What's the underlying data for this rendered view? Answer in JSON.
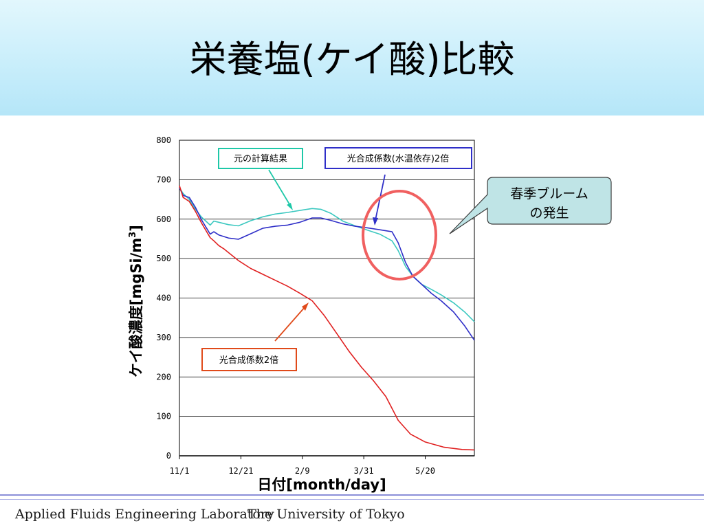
{
  "slide": {
    "title": "栄養塩(ケイ酸)比較",
    "footer_left": "Applied Fluids Engineering Laboratory",
    "footer_right": "The University of Tokyo"
  },
  "chart_data": {
    "type": "line",
    "xlabel": "日付[month/day]",
    "ylabel": "ケイ酸濃度[mgSi/m3]",
    "ylabel_main": "ケイ酸濃度[mgSi/m",
    "ylabel_sup": "3",
    "ylabel_tail": "]",
    "ylim": [
      0,
      800
    ],
    "yticks": [
      0,
      100,
      200,
      300,
      400,
      500,
      600,
      700,
      800
    ],
    "xlim": [
      0,
      240
    ],
    "xticks": [
      {
        "label": "11/1",
        "x": 0
      },
      {
        "label": "12/21",
        "x": 50
      },
      {
        "label": "2/9",
        "x": 100
      },
      {
        "label": "3/31",
        "x": 150
      },
      {
        "label": "5/20",
        "x": 200
      }
    ],
    "grid": true,
    "series": [
      {
        "name": "元の計算結果",
        "color": "#3cc8c0",
        "points": [
          [
            0,
            680
          ],
          [
            3,
            665
          ],
          [
            8,
            650
          ],
          [
            13,
            625
          ],
          [
            18,
            605
          ],
          [
            25,
            585
          ],
          [
            28,
            595
          ],
          [
            32,
            592
          ],
          [
            40,
            586
          ],
          [
            48,
            583
          ],
          [
            58,
            596
          ],
          [
            68,
            606
          ],
          [
            78,
            613
          ],
          [
            88,
            617
          ],
          [
            98,
            622
          ],
          [
            108,
            627
          ],
          [
            115,
            625
          ],
          [
            123,
            615
          ],
          [
            133,
            595
          ],
          [
            143,
            583
          ],
          [
            153,
            572
          ],
          [
            163,
            562
          ],
          [
            173,
            545
          ],
          [
            178,
            520
          ],
          [
            184,
            480
          ],
          [
            190,
            455
          ],
          [
            197,
            435
          ],
          [
            205,
            422
          ],
          [
            213,
            408
          ],
          [
            223,
            388
          ],
          [
            232,
            365
          ],
          [
            240,
            340
          ]
        ]
      },
      {
        "name": "光合成係数(水温依存)2倍",
        "color": "#2f2fc8",
        "points": [
          [
            0,
            680
          ],
          [
            3,
            660
          ],
          [
            8,
            655
          ],
          [
            13,
            630
          ],
          [
            18,
            598
          ],
          [
            25,
            562
          ],
          [
            28,
            568
          ],
          [
            32,
            560
          ],
          [
            40,
            552
          ],
          [
            48,
            549
          ],
          [
            58,
            563
          ],
          [
            68,
            577
          ],
          [
            78,
            582
          ],
          [
            88,
            585
          ],
          [
            98,
            592
          ],
          [
            108,
            603
          ],
          [
            115,
            603
          ],
          [
            123,
            597
          ],
          [
            133,
            588
          ],
          [
            143,
            582
          ],
          [
            153,
            578
          ],
          [
            163,
            573
          ],
          [
            173,
            568
          ],
          [
            178,
            540
          ],
          [
            184,
            490
          ],
          [
            190,
            455
          ],
          [
            197,
            435
          ],
          [
            205,
            412
          ],
          [
            213,
            393
          ],
          [
            223,
            365
          ],
          [
            232,
            330
          ],
          [
            240,
            293
          ]
        ]
      },
      {
        "name": "光合成係数2倍",
        "color": "#e02020",
        "points": [
          [
            0,
            685
          ],
          [
            3,
            655
          ],
          [
            8,
            645
          ],
          [
            13,
            620
          ],
          [
            18,
            590
          ],
          [
            25,
            553
          ],
          [
            28,
            545
          ],
          [
            32,
            533
          ],
          [
            36,
            525
          ],
          [
            40,
            515
          ],
          [
            48,
            495
          ],
          [
            58,
            475
          ],
          [
            68,
            460
          ],
          [
            78,
            445
          ],
          [
            88,
            430
          ],
          [
            98,
            412
          ],
          [
            108,
            393
          ],
          [
            118,
            355
          ],
          [
            128,
            310
          ],
          [
            138,
            265
          ],
          [
            148,
            225
          ],
          [
            158,
            190
          ],
          [
            168,
            150
          ],
          [
            178,
            90
          ],
          [
            188,
            55
          ],
          [
            200,
            35
          ],
          [
            215,
            22
          ],
          [
            230,
            16
          ],
          [
            240,
            15
          ]
        ]
      }
    ],
    "annotations": [
      {
        "text": "元の計算結果",
        "color": "#1ec8a8"
      },
      {
        "text": "光合成係数(水温依存)2倍",
        "color": "#2f2fc8"
      },
      {
        "text": "光合成係数2倍",
        "color": "#e04a1a"
      }
    ],
    "callout": {
      "line1": "春季ブルーム",
      "line2": "の発生",
      "fill": "#bfe4e6",
      "circle_color": "#f06060"
    }
  }
}
